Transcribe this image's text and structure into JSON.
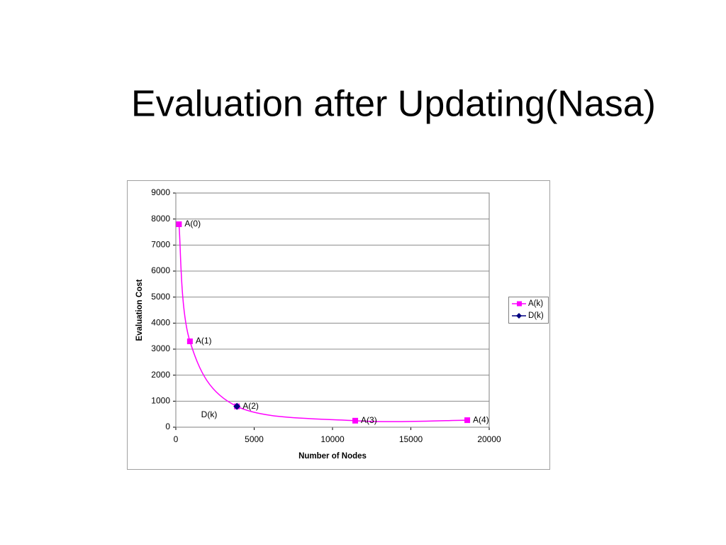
{
  "title": "Evaluation after Updating(Nasa)",
  "chart_data": {
    "type": "line",
    "x_label": "Number of Nodes",
    "y_label": "Evaluation Cost",
    "xlim": [
      0,
      20000
    ],
    "xticks": [
      0,
      5000,
      10000,
      15000,
      20000
    ],
    "ylim": [
      0,
      9000
    ],
    "yticks": [
      0,
      1000,
      2000,
      3000,
      4000,
      5000,
      6000,
      7000,
      8000,
      9000
    ],
    "grid": true,
    "smooth": true,
    "legend": "right",
    "annotations": [
      "D(k)"
    ],
    "series": [
      {
        "name": "A(k)",
        "color": "#ff00ff",
        "marker": "square",
        "x": [
          200,
          900,
          3900,
          11450,
          18600
        ],
        "values": [
          7800,
          3300,
          800,
          250,
          270
        ],
        "point_labels": [
          "A(0)",
          "A(1)",
          "A(2)",
          "A(3)",
          "A(4)"
        ]
      },
      {
        "name": "D(k)",
        "color": "#000080",
        "marker": "diamond",
        "x": [
          3900
        ],
        "values": [
          800
        ]
      }
    ]
  }
}
